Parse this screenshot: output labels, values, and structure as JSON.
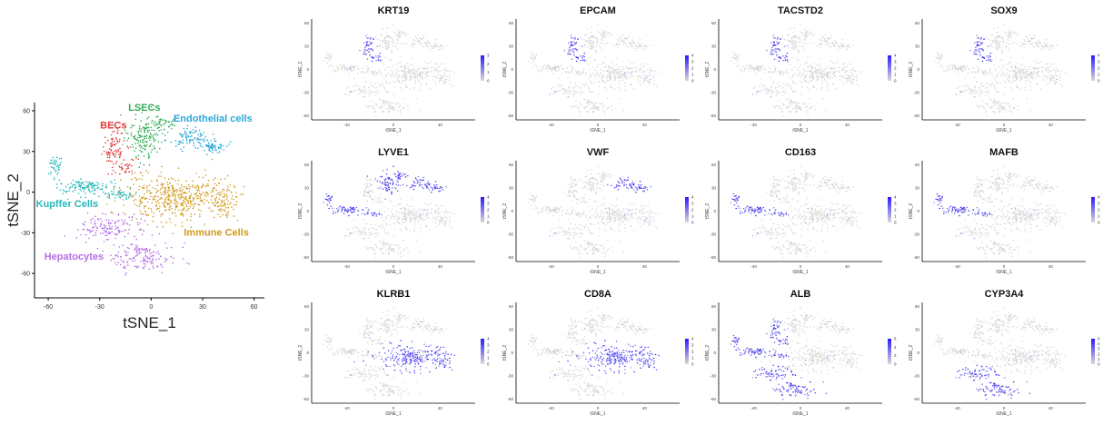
{
  "chart_data": {
    "type": "scatter",
    "main_plot": {
      "xlabel": "tSNE_1",
      "ylabel": "tSNE_2",
      "xlim": [
        -68,
        66
      ],
      "ylim": [
        -78,
        66
      ],
      "xticks": [
        -60,
        -30,
        0,
        30,
        60
      ],
      "yticks": [
        60,
        30,
        0,
        -30,
        -60
      ],
      "clusters": [
        {
          "name": "BECs",
          "color": "#e63a3a",
          "label_pos": [
            -22,
            47
          ],
          "regions": [
            {
              "cx": -22,
              "cy": 32,
              "rx": 6,
              "ry": 14,
              "n": 90
            },
            {
              "cx": -14,
              "cy": 18,
              "rx": 5,
              "ry": 6,
              "n": 30
            }
          ]
        },
        {
          "name": "LSECs",
          "color": "#2fae57",
          "label_pos": [
            -4,
            60
          ],
          "regions": [
            {
              "cx": -5,
              "cy": 40,
              "rx": 9,
              "ry": 15,
              "n": 150
            },
            {
              "cx": 5,
              "cy": 50,
              "rx": 9,
              "ry": 5,
              "n": 50
            }
          ]
        },
        {
          "name": "Endothelial cells",
          "color": "#2aa7d9",
          "label_pos": [
            36,
            52
          ],
          "regions": [
            {
              "cx": 22,
              "cy": 40,
              "rx": 12,
              "ry": 6,
              "n": 90
            },
            {
              "cx": 35,
              "cy": 34,
              "rx": 8,
              "ry": 5,
              "n": 60
            }
          ]
        },
        {
          "name": "Kupffer Cells",
          "color": "#27b8b8",
          "label_pos": [
            -49,
            -11
          ],
          "regions": [
            {
              "cx": -56,
              "cy": 18,
              "rx": 4,
              "ry": 8,
              "n": 40
            },
            {
              "cx": -38,
              "cy": 4,
              "rx": 17,
              "ry": 5,
              "n": 130
            },
            {
              "cx": -18,
              "cy": -2,
              "rx": 8,
              "ry": 3,
              "n": 40
            }
          ]
        },
        {
          "name": "Immune Cells",
          "color": "#d19a1d",
          "label_pos": [
            38,
            -32
          ],
          "regions": [
            {
              "cx": 15,
              "cy": -4,
              "rx": 28,
              "ry": 15,
              "n": 460
            },
            {
              "cx": 43,
              "cy": -8,
              "rx": 8,
              "ry": 11,
              "n": 70
            }
          ]
        },
        {
          "name": "Hepatocytes",
          "color": "#b46ee6",
          "label_pos": [
            -45,
            -50
          ],
          "regions": [
            {
              "cx": -24,
              "cy": -26,
              "rx": 16,
              "ry": 10,
              "n": 140
            },
            {
              "cx": -5,
              "cy": -48,
              "rx": 18,
              "ry": 11,
              "n": 160
            }
          ]
        }
      ]
    },
    "feature_plots": {
      "xlabel": "tSNE_1",
      "ylabel": "tSNE_2",
      "xticks": [
        -40,
        0,
        40
      ],
      "yticks": [
        60,
        30,
        0,
        -30,
        -60
      ],
      "low_color": "#d9d9d9",
      "high_color": "#2a1aff",
      "panels": [
        {
          "gene": "KRT19",
          "legend": [
            "3",
            "2",
            "1",
            "0"
          ],
          "max": 3,
          "high": [
            "BECs"
          ]
        },
        {
          "gene": "EPCAM",
          "legend": [
            "4",
            "3",
            "2",
            "1",
            "0"
          ],
          "max": 4,
          "high": [
            "BECs"
          ]
        },
        {
          "gene": "TACSTD2",
          "legend": [
            "4",
            "3",
            "2",
            "1",
            "0"
          ],
          "max": 4,
          "high": [
            "BECs"
          ]
        },
        {
          "gene": "SOX9",
          "legend": [
            "4",
            "3",
            "2",
            "1",
            "0"
          ],
          "max": 4,
          "high": [
            "BECs"
          ]
        },
        {
          "gene": "LYVE1",
          "legend": [
            "4",
            "3",
            "2",
            "1",
            "0"
          ],
          "max": 4,
          "high": [
            "Endothelial cells",
            "LSECs",
            "Kupffer Cells"
          ]
        },
        {
          "gene": "VWF",
          "legend": [
            "4",
            "3",
            "2",
            "1",
            "0"
          ],
          "max": 4,
          "high": [
            "Endothelial cells"
          ]
        },
        {
          "gene": "CD163",
          "legend": [
            "4",
            "3",
            "2",
            "1",
            "0"
          ],
          "max": 4,
          "high": [
            "Kupffer Cells"
          ]
        },
        {
          "gene": "MAFB",
          "legend": [
            "4",
            "3",
            "2",
            "1",
            "0"
          ],
          "max": 4,
          "high": [
            "Kupffer Cells"
          ]
        },
        {
          "gene": "KLRB1",
          "legend": [
            "4",
            "3",
            "2",
            "1",
            "0"
          ],
          "max": 4,
          "high": [
            "Immune Cells"
          ]
        },
        {
          "gene": "CD8A",
          "legend": [
            "4",
            "3",
            "2",
            "1",
            "0"
          ],
          "max": 4,
          "high": [
            "Immune Cells"
          ]
        },
        {
          "gene": "ALB",
          "legend": [
            "6",
            "4",
            "2",
            "0"
          ],
          "max": 6,
          "high": [
            "Hepatocytes",
            "BECs",
            "Kupffer Cells"
          ]
        },
        {
          "gene": "CYP3A4",
          "legend": [
            "5",
            "4",
            "3",
            "2",
            "1",
            "0"
          ],
          "max": 5,
          "high": [
            "Hepatocytes"
          ]
        }
      ]
    }
  }
}
